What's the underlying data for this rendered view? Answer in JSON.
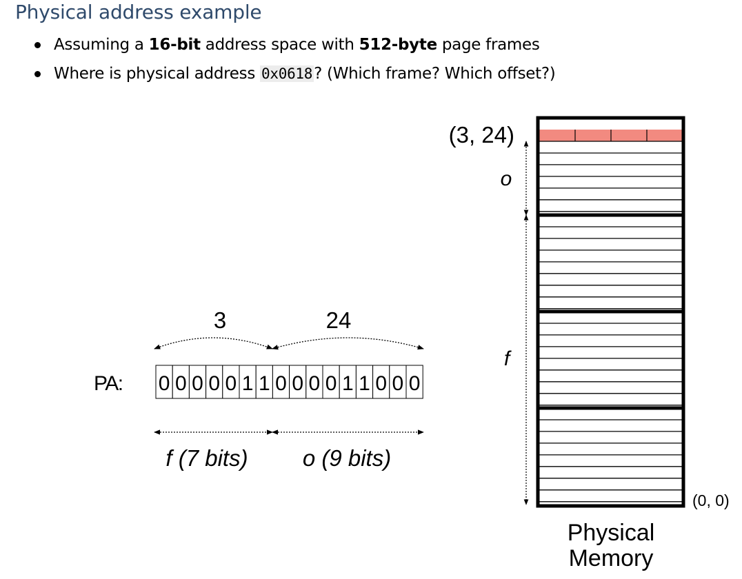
{
  "title": "Physical address example",
  "bullets": [
    {
      "pre": "Assuming a ",
      "b1": "16-bit",
      "mid": " address space with ",
      "b2": "512-byte",
      "post": " page frames"
    },
    {
      "pre": "Where is physical address ",
      "code": "0x0618",
      "post": "? (Which frame? Which offset?)"
    }
  ],
  "diagram": {
    "pa_label": "PA:",
    "bits": [
      "0",
      "0",
      "0",
      "0",
      "0",
      "1",
      "1",
      "0",
      "0",
      "0",
      "0",
      "1",
      "1",
      "0",
      "0",
      "0"
    ],
    "frame_value": "3",
    "offset_value": "24",
    "frame_field_label": "f (7 bits)",
    "offset_field_label": "o (9 bits)",
    "target_label": "(3, 24)",
    "offset_arrow_label": "o",
    "frame_arrow_label": "f",
    "origin_label": "(0, 0)",
    "memory_caption_line1": "Physical",
    "memory_caption_line2": "Memory",
    "highlight_color": "#f28a80"
  }
}
